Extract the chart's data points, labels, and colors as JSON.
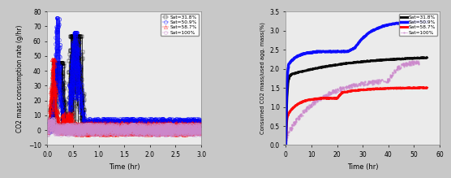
{
  "left": {
    "xlabel": "Time (hr)",
    "ylabel": "CO2 mass consumption rate (g/hr)",
    "xlim": [
      0,
      3
    ],
    "ylim": [
      -10,
      80
    ],
    "yticks": [
      -10,
      0,
      10,
      20,
      30,
      40,
      50,
      60,
      70,
      80
    ],
    "xticks": [
      0,
      0.5,
      1.0,
      1.5,
      2.0,
      2.5,
      3.0
    ],
    "legend": [
      "Sat=31.8%",
      "Sat=50.9%",
      "Sat=58.7%",
      "Sat=100%"
    ],
    "colors": [
      "black",
      "blue",
      "red",
      "#cc88cc"
    ],
    "line_colors": [
      "black",
      "blue",
      "red",
      "#cc88cc"
    ]
  },
  "right": {
    "xlabel": "Time (hr)",
    "ylabel": "Consumed CO2 mass/used agg. mass(%)",
    "xlim": [
      0,
      60
    ],
    "ylim": [
      0,
      3.5
    ],
    "yticks": [
      0,
      0.5,
      1.0,
      1.5,
      2.0,
      2.5,
      3.0,
      3.5
    ],
    "xticks": [
      0,
      10,
      20,
      30,
      40,
      50,
      60
    ],
    "legend": [
      "Sat=31.8%",
      "Sat=50.9%",
      "Sat=58.7%",
      "Sat=100%"
    ],
    "colors": [
      "black",
      "blue",
      "red",
      "#cc88cc"
    ]
  },
  "background": "#ebebeb",
  "fig_background": "#c8c8c8"
}
